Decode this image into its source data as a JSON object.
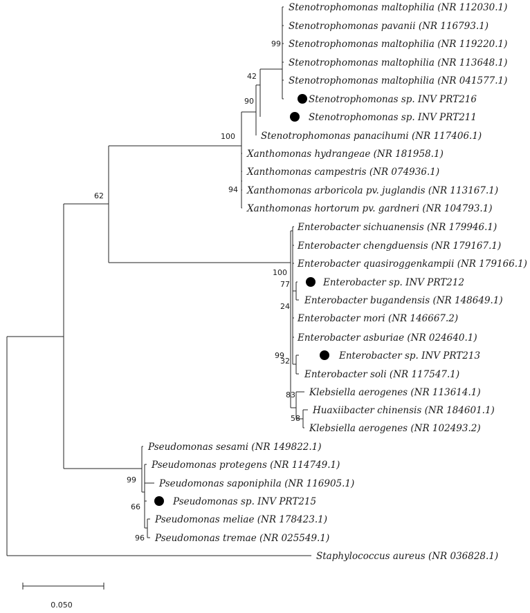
{
  "tree": {
    "leaves": [
      {
        "label": "Stenotrophomonas maltophilia (NR 112030.1)",
        "marked": false
      },
      {
        "label": "Stenotrophomonas pavanii (NR 116793.1)",
        "marked": false
      },
      {
        "label": "Stenotrophomonas maltophilia (NR 119220.1)",
        "marked": false
      },
      {
        "label": "Stenotrophomonas maltophilia (NR 113648.1)",
        "marked": false
      },
      {
        "label": "Stenotrophomonas maltophilia (NR 041577.1)",
        "marked": false
      },
      {
        "label": "Stenotrophomonas sp. INV PRT216",
        "marked": true
      },
      {
        "label": "Stenotrophomonas sp. INV PRT211",
        "marked": true
      },
      {
        "label": "Stenotrophomonas panacihumi (NR 117406.1)",
        "marked": false
      },
      {
        "label": "Xanthomonas hydrangeae (NR 181958.1)",
        "marked": false
      },
      {
        "label": "Xanthomonas campestris (NR 074936.1)",
        "marked": false
      },
      {
        "label": "Xanthomonas arboricola pv. juglandis (NR 113167.1)",
        "marked": false
      },
      {
        "label": "Xanthomonas hortorum pv. gardneri (NR 104793.1)",
        "marked": false
      },
      {
        "label": "Enterobacter sichuanensis (NR 179946.1)",
        "marked": false
      },
      {
        "label": "Enterobacter chengduensis (NR 179167.1)",
        "marked": false
      },
      {
        "label": "Enterobacter quasiroggenkampii (NR 179166.1)",
        "marked": false
      },
      {
        "label": "Enterobacter sp. INV PRT212",
        "marked": true
      },
      {
        "label": "Enterobacter bugandensis (NR 148649.1)",
        "marked": false
      },
      {
        "label": "Enterobacter mori (NR 146667.2)",
        "marked": false
      },
      {
        "label": "Enterobacter asburiae (NR 024640.1)",
        "marked": false
      },
      {
        "label": "Enterobacter sp. INV PRT213",
        "marked": true
      },
      {
        "label": "Enterobacter soli (NR 117547.1)",
        "marked": false
      },
      {
        "label": "Klebsiella aerogenes (NR 113614.1)",
        "marked": false
      },
      {
        "label": "Huaxiibacter chinensis (NR 184601.1)",
        "marked": false
      },
      {
        "label": "Klebsiella aerogenes (NR 102493.2)",
        "marked": false
      },
      {
        "label": "Pseudomonas sesami (NR 149822.1)",
        "marked": false
      },
      {
        "label": "Pseudomonas protegens (NR 114749.1)",
        "marked": false
      },
      {
        "label": "Pseudomonas saponiphila (NR 116905.1)",
        "marked": false
      },
      {
        "label": "Pseudomonas sp. INV PRT215",
        "marked": true
      },
      {
        "label": "Pseudomonas meliae (NR 178423.1)",
        "marked": false
      },
      {
        "label": "Pseudomonas tremae (NR 025549.1)",
        "marked": false
      },
      {
        "label": "Staphylococcus aureus (NR 036828.1)",
        "marked": false
      }
    ],
    "bootstrap_values": [
      "99",
      "42",
      "90",
      "100",
      "94",
      "62",
      "100",
      "77",
      "24",
      "32",
      "99",
      "83",
      "58",
      "99",
      "66",
      "96"
    ],
    "scale_bar": "0.050"
  }
}
